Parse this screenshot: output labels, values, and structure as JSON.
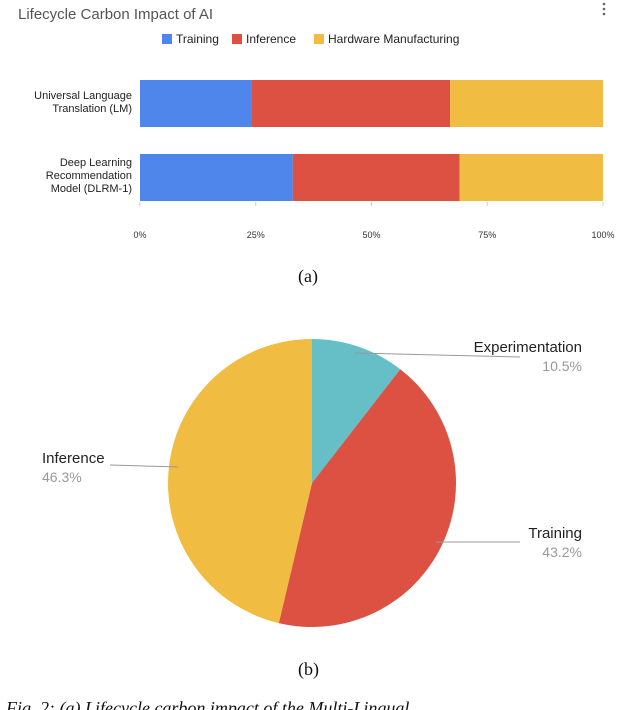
{
  "chart_data": [
    {
      "type": "stacked-bar-horizontal",
      "title": "Lifecycle Carbon Impact of AI",
      "categories": [
        "Universal Language Translation (LM)",
        "Deep Learning Recommendation Model (DLRM-1)"
      ],
      "series": [
        {
          "name": "Training",
          "color": "#4f86ec",
          "values": [
            24,
            33
          ]
        },
        {
          "name": "Inference",
          "color": "#dc5142",
          "values": [
            43,
            36
          ]
        },
        {
          "name": "Hardware Manufacturing",
          "color": "#f0bc42",
          "values": [
            33,
            31
          ]
        }
      ],
      "xlim": [
        0,
        100
      ],
      "xticks": [
        {
          "value": 0,
          "label": "0%"
        },
        {
          "value": 25,
          "label": "25%"
        },
        {
          "value": 50,
          "label": "50%"
        },
        {
          "value": 75,
          "label": "75%"
        },
        {
          "value": 100,
          "label": "100%"
        }
      ],
      "legend": "top",
      "caption": "(a)"
    },
    {
      "type": "pie",
      "categories": [
        "Experimentation",
        "Training",
        "Inference"
      ],
      "values": [
        10.5,
        43.2,
        46.3
      ],
      "value_labels": [
        "10.5%",
        "43.2%",
        "46.3%"
      ],
      "colors": [
        "#66bfc6",
        "#dc5142",
        "#f0bc42"
      ],
      "caption": "(b)"
    }
  ],
  "footer": "Fig. 2: (a) Lifecycle carbon impact of the Multi-Lingual"
}
